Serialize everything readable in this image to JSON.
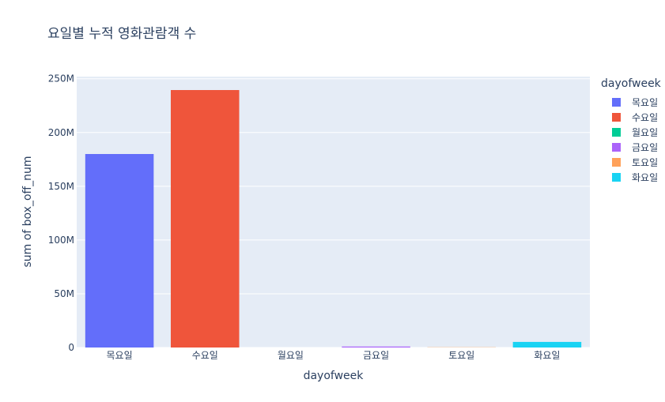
{
  "chart_data": {
    "type": "bar",
    "title": "요일별 누적 영화관람객 수",
    "xlabel": "dayofweek",
    "ylabel": "sum of box_off_num",
    "categories": [
      "목요일",
      "수요일",
      "월요일",
      "금요일",
      "토요일",
      "화요일"
    ],
    "values": [
      180000000,
      239500000,
      0,
      900000,
      200000,
      5200000
    ],
    "colors": [
      "#636efa",
      "#ef553b",
      "#00cc96",
      "#ab63fa",
      "#ffa15a",
      "#19d3f3"
    ],
    "ylim": [
      0,
      252000000
    ],
    "yticks": [
      0,
      50000000,
      100000000,
      150000000,
      200000000,
      250000000
    ],
    "ytick_labels": [
      "0",
      "50M",
      "100M",
      "150M",
      "200M",
      "250M"
    ],
    "grid": true,
    "legend": {
      "title": "dayofweek",
      "placement": "right",
      "items": [
        "목요일",
        "수요일",
        "월요일",
        "금요일",
        "토요일",
        "화요일"
      ]
    },
    "plot_bg": "#e5ecf6"
  }
}
